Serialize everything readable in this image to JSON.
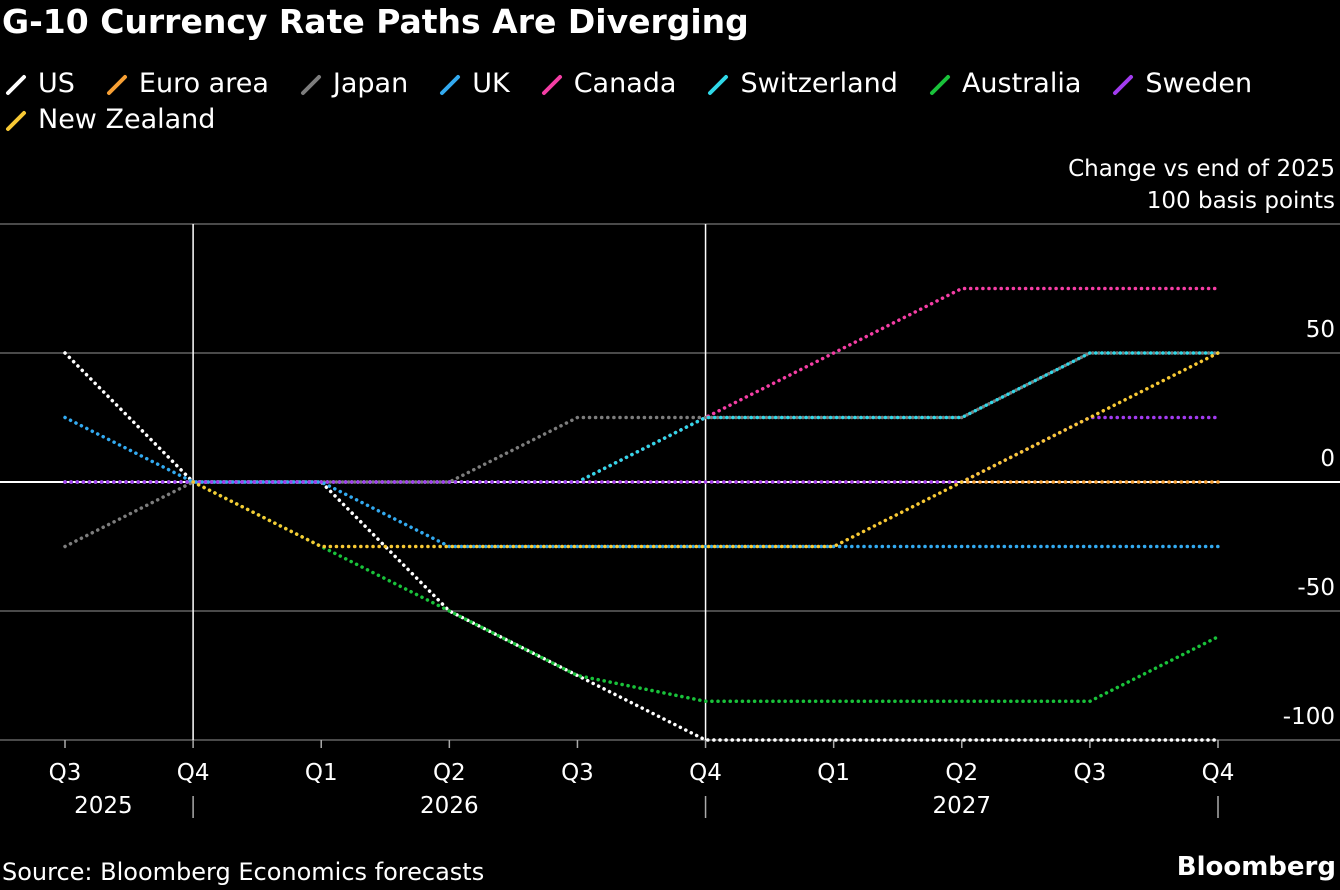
{
  "chart_data": {
    "type": "line",
    "title": "G-10 Currency Rate Paths Are Diverging",
    "y_label": "Change vs end of 2025",
    "categories": [
      "Q3",
      "Q4",
      "Q1",
      "Q2",
      "Q3",
      "Q4",
      "Q1",
      "Q2",
      "Q3",
      "Q4"
    ],
    "year_labels": [
      "2025",
      "2026",
      "2027"
    ],
    "series": [
      {
        "name": "US",
        "color": "#ffffff",
        "values": [
          50,
          0,
          0,
          -50,
          -75,
          -100,
          -100,
          -100,
          -100,
          -100
        ]
      },
      {
        "name": "Euro area",
        "color": "#f7a034",
        "values": [
          0,
          0,
          0,
          0,
          0,
          0,
          0,
          0,
          0,
          0
        ]
      },
      {
        "name": "Japan",
        "color": "#7d7d7d",
        "values": [
          -25,
          0,
          0,
          0,
          25,
          25,
          25,
          25,
          50,
          50
        ]
      },
      {
        "name": "UK",
        "color": "#33aaf0",
        "values": [
          25,
          0,
          0,
          -25,
          -25,
          -25,
          -25,
          -25,
          -25,
          -25
        ]
      },
      {
        "name": "Canada",
        "color": "#f53ea5",
        "values": [
          0,
          0,
          0,
          0,
          0,
          25,
          50,
          75,
          75,
          75
        ]
      },
      {
        "name": "Switzerland",
        "color": "#2fd8e8",
        "values": [
          0,
          0,
          0,
          0,
          0,
          25,
          25,
          25,
          50,
          50
        ]
      },
      {
        "name": "Australia",
        "color": "#19c23a",
        "values": [
          null,
          0,
          -25,
          -50,
          -75,
          -85,
          -85,
          -85,
          -85,
          -60
        ]
      },
      {
        "name": "Sweden",
        "color": "#a23cf0",
        "values": [
          0,
          0,
          0,
          0,
          0,
          0,
          0,
          0,
          25,
          25
        ]
      },
      {
        "name": "New Zealand",
        "color": "#f8c934",
        "values": [
          null,
          0,
          -25,
          -25,
          -25,
          -25,
          -25,
          0,
          25,
          50
        ]
      }
    ],
    "ylim": [
      -100,
      100
    ],
    "yticks": [
      -100,
      -50,
      0,
      50,
      {
        "value": 100,
        "label": "100 basis points"
      }
    ],
    "grid": true,
    "source": "Source: Bloomberg Economics forecasts",
    "brand": "Bloomberg"
  }
}
